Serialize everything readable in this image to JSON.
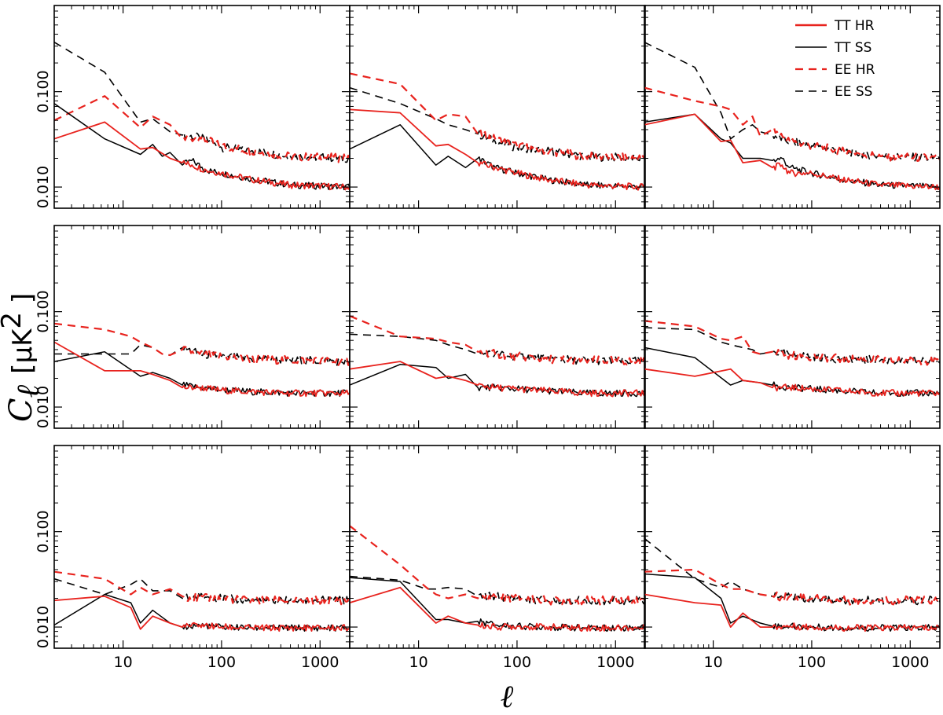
{
  "chart_data": {
    "type": "line",
    "layout": "3x3 grid of log-log panels",
    "xscale": "log",
    "yscale": "log",
    "xlim": [
      2,
      2000
    ],
    "ylim": [
      0.006,
      0.8
    ],
    "xticks": [
      10,
      100,
      1000
    ],
    "xtick_labels": [
      "10",
      "100",
      "1000"
    ],
    "yticks": [
      0.01,
      0.1
    ],
    "ytick_labels": [
      "0.010",
      "0.100"
    ],
    "ylabel_symbol": "C",
    "ylabel_subscript": "ℓ",
    "ylabel_units": "[μK",
    "ylabel_units_exp": "2",
    "ylabel_units_close": " ]",
    "xlabel": "ℓ",
    "legend": {
      "position": "top-right of top-right panel",
      "entries": [
        {
          "label": "TT HR",
          "color": "#e8231e",
          "style": "solid"
        },
        {
          "label": "TT SS",
          "color": "#000000",
          "style": "solid"
        },
        {
          "label": "EE HR",
          "color": "#e8231e",
          "style": "dashed"
        },
        {
          "label": "EE SS",
          "color": "#000000",
          "style": "dashed"
        }
      ]
    },
    "series_colors": {
      "HR": "#e8231e",
      "SS": "#000000"
    },
    "panels": [
      {
        "row": 0,
        "col": 0,
        "TT_HR": {
          "x": [
            2,
            6.5,
            15,
            20,
            30,
            40,
            50,
            70,
            100,
            200,
            500,
            2000
          ],
          "y": [
            0.032,
            0.048,
            0.025,
            0.026,
            0.02,
            0.018,
            0.017,
            0.015,
            0.014,
            0.012,
            0.0105,
            0.01
          ]
        },
        "TT_SS": {
          "x": [
            2,
            6.5,
            15,
            20,
            25,
            30,
            40,
            50,
            70,
            100,
            200,
            500,
            2000
          ],
          "y": [
            0.075,
            0.032,
            0.022,
            0.028,
            0.021,
            0.023,
            0.017,
            0.019,
            0.015,
            0.014,
            0.0122,
            0.0105,
            0.01
          ]
        },
        "EE_HR": {
          "x": [
            2,
            6.5,
            15,
            20,
            30,
            40,
            60,
            100,
            200,
            500,
            2000
          ],
          "y": [
            0.05,
            0.09,
            0.042,
            0.055,
            0.045,
            0.032,
            0.033,
            0.027,
            0.024,
            0.021,
            0.02
          ]
        },
        "EE_SS": {
          "x": [
            2,
            6.5,
            15,
            20,
            30,
            40,
            60,
            100,
            200,
            500,
            2000
          ],
          "y": [
            0.33,
            0.16,
            0.048,
            0.052,
            0.038,
            0.035,
            0.033,
            0.026,
            0.024,
            0.021,
            0.02
          ]
        }
      },
      {
        "row": 0,
        "col": 1,
        "TT_HR": {
          "x": [
            2,
            6.5,
            15,
            20,
            30,
            40,
            60,
            100,
            200,
            500,
            2000
          ],
          "y": [
            0.065,
            0.06,
            0.027,
            0.028,
            0.022,
            0.018,
            0.016,
            0.014,
            0.012,
            0.0105,
            0.01
          ]
        },
        "TT_SS": {
          "x": [
            2,
            6.5,
            15,
            20,
            30,
            40,
            60,
            100,
            200,
            500,
            2000
          ],
          "y": [
            0.025,
            0.045,
            0.017,
            0.021,
            0.016,
            0.02,
            0.016,
            0.014,
            0.012,
            0.0105,
            0.01
          ]
        },
        "EE_HR": {
          "x": [
            2,
            6.5,
            15,
            20,
            30,
            40,
            60,
            100,
            200,
            500,
            2000
          ],
          "y": [
            0.155,
            0.12,
            0.05,
            0.058,
            0.055,
            0.036,
            0.032,
            0.027,
            0.024,
            0.021,
            0.02
          ]
        },
        "EE_SS": {
          "x": [
            2,
            6.5,
            15,
            20,
            30,
            40,
            60,
            100,
            200,
            500,
            2000
          ],
          "y": [
            0.11,
            0.075,
            0.052,
            0.045,
            0.04,
            0.036,
            0.03,
            0.026,
            0.024,
            0.021,
            0.02
          ]
        }
      },
      {
        "row": 0,
        "col": 2,
        "TT_HR": {
          "x": [
            2,
            6.5,
            12,
            15,
            20,
            30,
            40,
            50,
            60,
            100,
            200,
            500,
            2000
          ],
          "y": [
            0.045,
            0.058,
            0.03,
            0.031,
            0.018,
            0.019,
            0.016,
            0.017,
            0.014,
            0.014,
            0.012,
            0.0105,
            0.01
          ]
        },
        "TT_SS": {
          "x": [
            2,
            6.5,
            12,
            15,
            20,
            30,
            40,
            50,
            60,
            100,
            200,
            500,
            2000
          ],
          "y": [
            0.048,
            0.058,
            0.032,
            0.029,
            0.02,
            0.02,
            0.019,
            0.02,
            0.016,
            0.014,
            0.012,
            0.0105,
            0.01
          ]
        },
        "EE_HR": {
          "x": [
            2,
            6.5,
            12,
            15,
            20,
            25,
            30,
            40,
            60,
            100,
            200,
            500,
            2000
          ],
          "y": [
            0.11,
            0.08,
            0.07,
            0.065,
            0.045,
            0.055,
            0.034,
            0.04,
            0.03,
            0.027,
            0.024,
            0.021,
            0.02
          ]
        },
        "EE_SS": {
          "x": [
            2,
            6.5,
            12,
            15,
            20,
            25,
            30,
            40,
            60,
            100,
            200,
            500,
            2000
          ],
          "y": [
            0.33,
            0.18,
            0.06,
            0.032,
            0.04,
            0.045,
            0.038,
            0.035,
            0.03,
            0.027,
            0.024,
            0.021,
            0.02
          ]
        }
      },
      {
        "row": 1,
        "col": 0,
        "TT_HR": {
          "x": [
            2,
            6.5,
            15,
            20,
            30,
            40,
            60,
            100,
            200,
            500,
            2000
          ],
          "y": [
            0.048,
            0.024,
            0.024,
            0.022,
            0.019,
            0.016,
            0.016,
            0.015,
            0.0145,
            0.014,
            0.014
          ]
        },
        "TT_SS": {
          "x": [
            2,
            6.5,
            15,
            20,
            30,
            40,
            60,
            100,
            200,
            500,
            2000
          ],
          "y": [
            0.03,
            0.038,
            0.021,
            0.023,
            0.02,
            0.017,
            0.016,
            0.0152,
            0.0145,
            0.014,
            0.014
          ]
        },
        "EE_HR": {
          "x": [
            2,
            6.5,
            12,
            15,
            20,
            25,
            30,
            40,
            60,
            100,
            200,
            500,
            2000
          ],
          "y": [
            0.075,
            0.065,
            0.055,
            0.048,
            0.042,
            0.036,
            0.035,
            0.04,
            0.036,
            0.034,
            0.032,
            0.031,
            0.03
          ]
        },
        "EE_SS": {
          "x": [
            2,
            6.5,
            12,
            15,
            20,
            25,
            30,
            40,
            60,
            100,
            200,
            500,
            2000
          ],
          "y": [
            0.036,
            0.036,
            0.036,
            0.045,
            0.042,
            0.036,
            0.035,
            0.042,
            0.036,
            0.034,
            0.032,
            0.031,
            0.03
          ]
        }
      },
      {
        "row": 1,
        "col": 1,
        "TT_HR": {
          "x": [
            2,
            6.5,
            15,
            20,
            30,
            40,
            60,
            100,
            200,
            500,
            2000
          ],
          "y": [
            0.025,
            0.03,
            0.02,
            0.021,
            0.019,
            0.017,
            0.016,
            0.0155,
            0.0148,
            0.014,
            0.014
          ]
        },
        "TT_SS": {
          "x": [
            2,
            6.5,
            15,
            20,
            30,
            40,
            60,
            100,
            200,
            500,
            2000
          ],
          "y": [
            0.017,
            0.028,
            0.026,
            0.02,
            0.022,
            0.016,
            0.016,
            0.0155,
            0.0148,
            0.014,
            0.014
          ]
        },
        "EE_HR": {
          "x": [
            2,
            6.5,
            15,
            20,
            30,
            40,
            60,
            100,
            200,
            500,
            2000
          ],
          "y": [
            0.09,
            0.055,
            0.052,
            0.048,
            0.045,
            0.038,
            0.036,
            0.034,
            0.032,
            0.031,
            0.03
          ]
        },
        "EE_SS": {
          "x": [
            2,
            6.5,
            15,
            20,
            30,
            40,
            60,
            100,
            200,
            500,
            2000
          ],
          "y": [
            0.058,
            0.055,
            0.05,
            0.045,
            0.04,
            0.036,
            0.036,
            0.034,
            0.032,
            0.031,
            0.03
          ]
        }
      },
      {
        "row": 1,
        "col": 2,
        "TT_HR": {
          "x": [
            2,
            6.5,
            15,
            20,
            30,
            40,
            60,
            100,
            200,
            500,
            2000
          ],
          "y": [
            0.025,
            0.021,
            0.025,
            0.019,
            0.018,
            0.016,
            0.016,
            0.0155,
            0.0148,
            0.014,
            0.014
          ]
        },
        "TT_SS": {
          "x": [
            2,
            6.5,
            15,
            20,
            30,
            40,
            60,
            100,
            200,
            500,
            2000
          ],
          "y": [
            0.042,
            0.033,
            0.017,
            0.019,
            0.018,
            0.017,
            0.016,
            0.0155,
            0.0148,
            0.014,
            0.014
          ]
        },
        "EE_HR": {
          "x": [
            2,
            6.5,
            12,
            15,
            20,
            25,
            30,
            40,
            60,
            100,
            200,
            500,
            2000
          ],
          "y": [
            0.08,
            0.07,
            0.052,
            0.05,
            0.055,
            0.038,
            0.036,
            0.038,
            0.035,
            0.034,
            0.032,
            0.031,
            0.03
          ]
        },
        "EE_SS": {
          "x": [
            2,
            6.5,
            12,
            15,
            20,
            25,
            30,
            40,
            60,
            100,
            200,
            500,
            2000
          ],
          "y": [
            0.068,
            0.065,
            0.048,
            0.045,
            0.042,
            0.04,
            0.036,
            0.038,
            0.035,
            0.034,
            0.032,
            0.031,
            0.03
          ]
        }
      },
      {
        "row": 2,
        "col": 0,
        "TT_HR": {
          "x": [
            2,
            6.5,
            12,
            15,
            20,
            30,
            40,
            60,
            100,
            200,
            500,
            2000
          ],
          "y": [
            0.019,
            0.021,
            0.016,
            0.0095,
            0.013,
            0.011,
            0.01,
            0.0105,
            0.01,
            0.0098,
            0.0098,
            0.0098
          ]
        },
        "TT_SS": {
          "x": [
            2,
            6.5,
            12,
            15,
            20,
            30,
            40,
            60,
            100,
            200,
            500,
            2000
          ],
          "y": [
            0.0105,
            0.022,
            0.018,
            0.011,
            0.015,
            0.011,
            0.01,
            0.0105,
            0.01,
            0.0098,
            0.0098,
            0.0098
          ]
        },
        "EE_HR": {
          "x": [
            2,
            6.5,
            12,
            15,
            20,
            30,
            40,
            60,
            100,
            200,
            500,
            2000
          ],
          "y": [
            0.038,
            0.032,
            0.022,
            0.026,
            0.022,
            0.025,
            0.021,
            0.02,
            0.02,
            0.019,
            0.019,
            0.019
          ]
        },
        "EE_SS": {
          "x": [
            2,
            6.5,
            12,
            15,
            20,
            30,
            40,
            60,
            100,
            200,
            500,
            2000
          ],
          "y": [
            0.032,
            0.022,
            0.028,
            0.032,
            0.024,
            0.024,
            0.02,
            0.021,
            0.02,
            0.019,
            0.019,
            0.019
          ]
        }
      },
      {
        "row": 2,
        "col": 1,
        "TT_HR": {
          "x": [
            2,
            6.5,
            15,
            20,
            30,
            40,
            60,
            100,
            200,
            500,
            2000
          ],
          "y": [
            0.018,
            0.026,
            0.011,
            0.013,
            0.011,
            0.0105,
            0.01,
            0.0102,
            0.01,
            0.0098,
            0.0098
          ]
        },
        "TT_SS": {
          "x": [
            2,
            6.5,
            15,
            20,
            30,
            40,
            60,
            100,
            200,
            500,
            2000
          ],
          "y": [
            0.033,
            0.03,
            0.012,
            0.012,
            0.011,
            0.0115,
            0.0105,
            0.0102,
            0.01,
            0.0098,
            0.0098
          ]
        },
        "EE_HR": {
          "x": [
            2,
            6.5,
            12,
            15,
            20,
            30,
            40,
            60,
            100,
            200,
            500,
            2000
          ],
          "y": [
            0.115,
            0.045,
            0.026,
            0.022,
            0.02,
            0.022,
            0.02,
            0.021,
            0.02,
            0.019,
            0.019,
            0.019
          ]
        },
        "EE_SS": {
          "x": [
            2,
            6.5,
            12,
            15,
            20,
            30,
            40,
            60,
            100,
            200,
            500,
            2000
          ],
          "y": [
            0.034,
            0.031,
            0.025,
            0.025,
            0.026,
            0.025,
            0.021,
            0.021,
            0.02,
            0.019,
            0.019,
            0.019
          ]
        }
      },
      {
        "row": 2,
        "col": 2,
        "TT_HR": {
          "x": [
            2,
            6.5,
            12,
            15,
            20,
            30,
            40,
            60,
            100,
            200,
            500,
            2000
          ],
          "y": [
            0.022,
            0.018,
            0.017,
            0.01,
            0.014,
            0.01,
            0.01,
            0.0102,
            0.01,
            0.0098,
            0.0098,
            0.0098
          ]
        },
        "TT_SS": {
          "x": [
            2,
            6.5,
            12,
            15,
            20,
            30,
            40,
            60,
            100,
            200,
            500,
            2000
          ],
          "y": [
            0.036,
            0.033,
            0.02,
            0.011,
            0.013,
            0.011,
            0.0102,
            0.0102,
            0.01,
            0.0098,
            0.0098,
            0.0098
          ]
        },
        "EE_HR": {
          "x": [
            2,
            6.5,
            12,
            15,
            20,
            30,
            40,
            60,
            100,
            200,
            500,
            2000
          ],
          "y": [
            0.038,
            0.04,
            0.028,
            0.025,
            0.025,
            0.022,
            0.021,
            0.021,
            0.02,
            0.019,
            0.019,
            0.019
          ]
        },
        "EE_SS": {
          "x": [
            2,
            6.5,
            12,
            15,
            20,
            30,
            40,
            60,
            100,
            200,
            500,
            2000
          ],
          "y": [
            0.085,
            0.032,
            0.026,
            0.03,
            0.025,
            0.022,
            0.021,
            0.021,
            0.02,
            0.019,
            0.019,
            0.019
          ]
        }
      }
    ]
  }
}
